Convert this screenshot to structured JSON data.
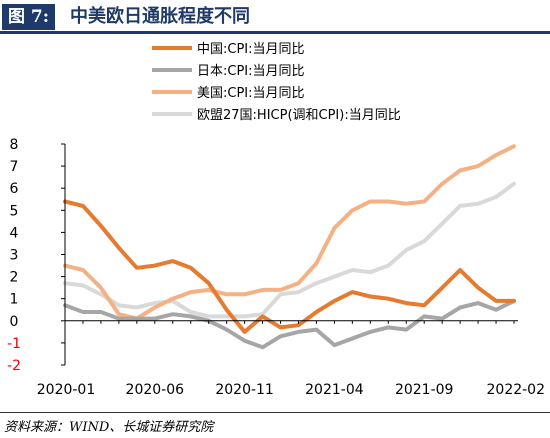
{
  "header": {
    "figure_label": "图 7:",
    "title": "中美欧日通胀程度不同"
  },
  "source": "资料来源：WIND、长城证券研究院",
  "chart_data": {
    "type": "line",
    "x": [
      "2020-01",
      "2020-02",
      "2020-03",
      "2020-04",
      "2020-05",
      "2020-06",
      "2020-07",
      "2020-08",
      "2020-09",
      "2020-10",
      "2020-11",
      "2020-12",
      "2021-01",
      "2021-02",
      "2021-03",
      "2021-04",
      "2021-05",
      "2021-06",
      "2021-07",
      "2021-08",
      "2021-09",
      "2021-10",
      "2021-11",
      "2021-12",
      "2022-01",
      "2022-02"
    ],
    "x_tick_labels": [
      "2020-01",
      "2020-06",
      "2020-11",
      "2021-04",
      "2021-09",
      "2022-02"
    ],
    "x_tick_indices": [
      0,
      5,
      10,
      15,
      20,
      25
    ],
    "ylim": [
      -2,
      8
    ],
    "y_ticks": [
      "8",
      "7",
      "6",
      "5",
      "4",
      "3",
      "2",
      "1",
      "0",
      "-1",
      "-2"
    ],
    "legend_position": "top",
    "series": [
      {
        "name": "中国:CPI:当月同比",
        "color": "#e67a2e",
        "values": [
          5.4,
          5.2,
          4.3,
          3.3,
          2.4,
          2.5,
          2.7,
          2.4,
          1.7,
          0.5,
          -0.5,
          0.2,
          -0.3,
          -0.2,
          0.4,
          0.9,
          1.3,
          1.1,
          1.0,
          0.8,
          0.7,
          1.5,
          2.3,
          1.5,
          0.9,
          0.9
        ]
      },
      {
        "name": "日本:CPI:当月同比",
        "color": "#a6a6a6",
        "values": [
          0.7,
          0.4,
          0.4,
          0.1,
          0.1,
          0.1,
          0.3,
          0.2,
          0.0,
          -0.4,
          -0.9,
          -1.2,
          -0.7,
          -0.5,
          -0.4,
          -1.1,
          -0.8,
          -0.5,
          -0.3,
          -0.4,
          0.2,
          0.1,
          0.6,
          0.8,
          0.5,
          0.9
        ]
      },
      {
        "name": "美国:CPI:当月同比",
        "color": "#f4b183",
        "values": [
          2.5,
          2.3,
          1.5,
          0.3,
          0.1,
          0.6,
          1.0,
          1.3,
          1.4,
          1.2,
          1.2,
          1.4,
          1.4,
          1.7,
          2.6,
          4.2,
          5.0,
          5.4,
          5.4,
          5.3,
          5.4,
          6.2,
          6.8,
          7.0,
          7.5,
          7.9
        ]
      },
      {
        "name": "欧盟27国:HICP(调和CPI):当月同比",
        "color": "#d9d9d9",
        "values": [
          1.7,
          1.6,
          1.2,
          0.7,
          0.6,
          0.8,
          0.9,
          0.4,
          0.2,
          0.2,
          0.2,
          0.3,
          1.2,
          1.3,
          1.7,
          2.0,
          2.3,
          2.2,
          2.5,
          3.2,
          3.6,
          4.4,
          5.2,
          5.3,
          5.6,
          6.2
        ]
      }
    ]
  }
}
